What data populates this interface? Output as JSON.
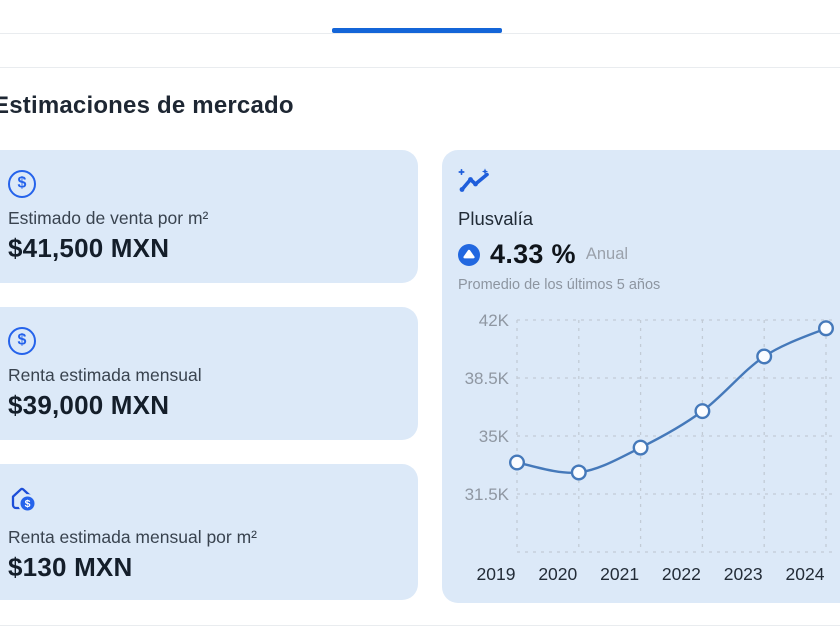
{
  "page": {
    "title": "Estimaciones de mercado"
  },
  "tab_bar": {
    "active_indicator_color": "#1465d8"
  },
  "icons": {
    "dollar_glyph": "$"
  },
  "colors": {
    "card_background": "#dce9f8",
    "accent_blue": "#1465d8",
    "icon_blue": "#2563eb",
    "badge_blue": "#2268e0"
  },
  "cards": [
    {
      "icon": "dollar-circle-icon",
      "label": "Estimado de venta por m²",
      "value": "$41,500 MXN"
    },
    {
      "icon": "dollar-circle-icon",
      "label": "Renta estimada mensual",
      "value": "$39,000 MXN"
    },
    {
      "icon": "house-dollar-icon",
      "label": "Renta estimada mensual por m²",
      "value": "$130 MXN"
    }
  ],
  "plusvalia": {
    "title": "Plusvalía",
    "trend": "up",
    "value": "4.33 %",
    "period": "Anual",
    "subtitle": "Promedio de los últimos 5 años"
  },
  "chart_data": {
    "type": "line",
    "title": "Plusvalía últimos 5 años",
    "x": [
      "2019",
      "2020",
      "2021",
      "2022",
      "2023",
      "2024"
    ],
    "values": [
      33400,
      32800,
      34300,
      36500,
      39800,
      41500
    ],
    "y_ticks": [
      "42K",
      "38.5K",
      "35K",
      "31.5K"
    ],
    "y_tick_values": [
      42000,
      38500,
      35000,
      31500
    ],
    "ylim": [
      28000,
      42000
    ],
    "grid": "dashed",
    "legend": "none",
    "line_color": "#4579ba",
    "marker": "open-circle",
    "marker_fill": "#fafcff",
    "grid_color": "#c2cbd6",
    "y_tick_color": "#8f97a2",
    "x_tick_color": "#232c37"
  }
}
